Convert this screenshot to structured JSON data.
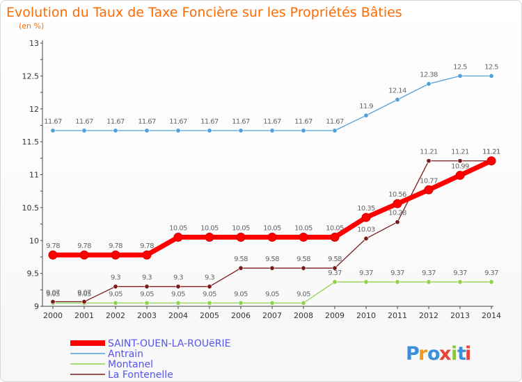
{
  "chart_data": {
    "type": "line",
    "title": "Evolution du Taux de Taxe Foncière sur les Propriétés Bâties",
    "subtitle": "(en %)",
    "xlabel": "",
    "ylabel": "(en %)",
    "ylim": [
      9,
      13
    ],
    "yticks": [
      "9",
      "9.5",
      "10",
      "10.5",
      "11",
      "11.5",
      "12",
      "12.5",
      "13"
    ],
    "categories": [
      "2000",
      "2001",
      "2002",
      "2003",
      "2004",
      "2005",
      "2006",
      "2007",
      "2008",
      "2009",
      "2010",
      "2011",
      "2012",
      "2013",
      "2014"
    ],
    "grid": false,
    "legend_position": "bottom-left",
    "series": [
      {
        "name": "SAINT-OUEN-LA-ROUëRIE",
        "color": "#ff0000",
        "emphasis": true,
        "values": [
          9.78,
          9.78,
          9.78,
          9.78,
          10.05,
          10.05,
          10.05,
          10.05,
          10.05,
          10.05,
          10.35,
          10.56,
          10.77,
          10.99,
          11.21
        ],
        "labels": [
          "9.78",
          "9.78",
          "9.78",
          "9.78",
          "10.05",
          "10.05",
          "10.05",
          "10.05",
          "10.05",
          "10.05",
          "10.35",
          "10.56",
          "10.77",
          "10.99",
          "11.21"
        ]
      },
      {
        "name": "Antrain",
        "color": "#4f9fd8",
        "emphasis": false,
        "values": [
          11.67,
          11.67,
          11.67,
          11.67,
          11.67,
          11.67,
          11.67,
          11.67,
          11.67,
          11.67,
          11.9,
          12.14,
          12.38,
          12.5,
          12.5
        ],
        "labels": [
          "11.67",
          "11.67",
          "11.67",
          "11.67",
          "11.67",
          "11.67",
          "11.67",
          "11.67",
          "11.67",
          "11.67",
          "11.9",
          "12.14",
          "12.38",
          "12.5",
          "12.5"
        ]
      },
      {
        "name": "Montanel",
        "color": "#8fd34a",
        "emphasis": false,
        "values": [
          9.05,
          9.05,
          9.05,
          9.05,
          9.05,
          9.05,
          9.05,
          9.05,
          9.05,
          9.37,
          9.37,
          9.37,
          9.37,
          9.37,
          9.37
        ],
        "labels": [
          "9.05",
          "9.05",
          "9.05",
          "9.05",
          "9.05",
          "9.05",
          "9.05",
          "9.05",
          "9.05",
          "9.37",
          "9.37",
          "9.37",
          "9.37",
          "9.37",
          "9.37"
        ]
      },
      {
        "name": "La Fontenelle",
        "color": "#7a1a1a",
        "emphasis": false,
        "values": [
          9.07,
          9.07,
          9.3,
          9.3,
          9.3,
          9.3,
          9.58,
          9.58,
          9.58,
          9.58,
          10.03,
          10.28,
          11.21,
          11.21,
          11.21
        ],
        "labels": [
          "9.07",
          "9.07",
          "9.3",
          "9.3",
          "9.3",
          "9.3",
          "9.58",
          "9.58",
          "9.58",
          "9.58",
          "10.03",
          "10.28",
          "11.21",
          "11.21",
          "11.21"
        ]
      }
    ]
  },
  "brand": {
    "letters": [
      "P",
      "r",
      "o",
      "x",
      "i",
      "t",
      "i"
    ],
    "colors": [
      "#3a8fd8",
      "#f39a1d",
      "#3a8fd8",
      "#e8433a",
      "#8cc63f",
      "#3a8fd8",
      "#e8433a"
    ]
  }
}
